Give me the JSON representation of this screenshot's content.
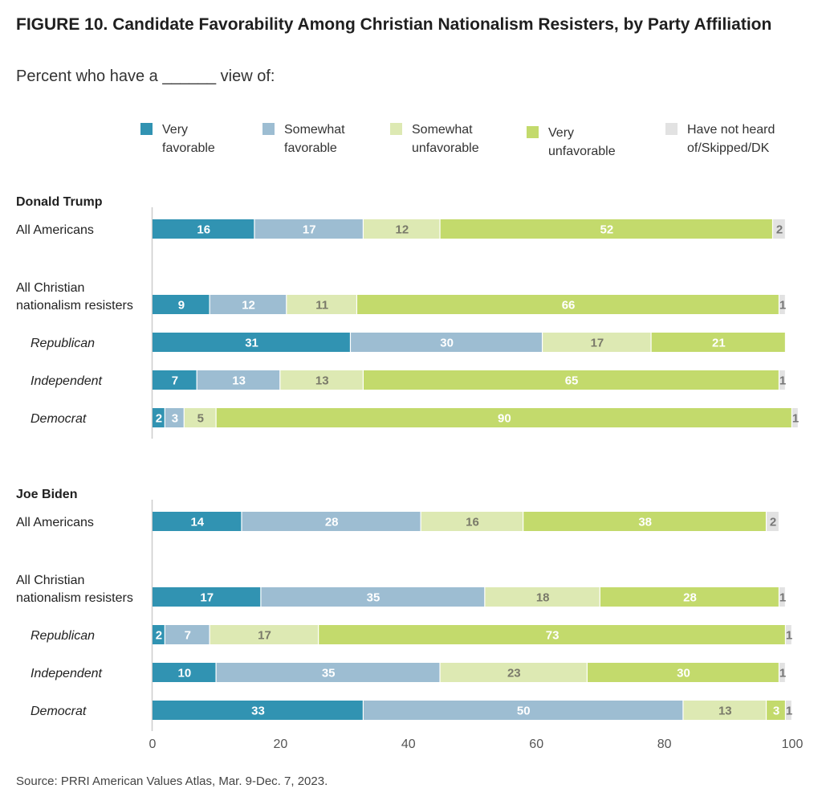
{
  "figure": {
    "title": "FIGURE 10.  Candidate Favorability Among Christian Nationalism Resisters, by Party Affiliation",
    "subtitle": "Percent who have a ______ view of:",
    "source": "Source: PRRI American Values Atlas, Mar. 9-Dec. 7, 2023."
  },
  "legend": [
    {
      "label": "Very\nfavorable",
      "color": "#3193b2"
    },
    {
      "label": "Somewhat\nfavorable",
      "color": "#9dbdd2"
    },
    {
      "label": "Somewhat\nunfavorable",
      "color": "#dde9b3"
    },
    {
      "label": "Very\nunfavorable",
      "color": "#c3da6c"
    },
    {
      "label": "Have not heard\nof/Skipped/DK",
      "color": "#e2e2e2"
    }
  ],
  "chart_data": {
    "type": "bar",
    "orientation": "horizontal",
    "stacked": true,
    "xlim": [
      0,
      100
    ],
    "xticks": [
      0,
      20,
      40,
      60,
      80,
      100
    ],
    "series_names": [
      "Very favorable",
      "Somewhat favorable",
      "Somewhat unfavorable",
      "Very unfavorable",
      "Have not heard of/Skipped/DK"
    ],
    "colors": [
      "#3193b2",
      "#9dbdd2",
      "#dde9b3",
      "#c3da6c",
      "#e2e2e2"
    ],
    "label_colors": [
      "#ffffff",
      "#ffffff",
      "#7a7a6a",
      "#ffffff",
      "#777777"
    ],
    "groups": [
      {
        "name": "Donald Trump",
        "rows": [
          {
            "label": "All Americans",
            "italic": false,
            "values": [
              16,
              17,
              12,
              52,
              2
            ]
          },
          {
            "label": "All Christian\nnationalism resisters",
            "italic": false,
            "values": [
              9,
              12,
              11,
              66,
              1
            ]
          },
          {
            "label": "Republican",
            "italic": true,
            "values": [
              31,
              30,
              17,
              21,
              null
            ]
          },
          {
            "label": "Independent",
            "italic": true,
            "values": [
              7,
              13,
              13,
              65,
              1
            ]
          },
          {
            "label": "Democrat",
            "italic": true,
            "values": [
              2,
              3,
              5,
              90,
              1
            ]
          }
        ]
      },
      {
        "name": "Joe Biden",
        "rows": [
          {
            "label": "All Americans",
            "italic": false,
            "values": [
              14,
              28,
              16,
              38,
              2
            ]
          },
          {
            "label": "All Christian\nnationalism resisters",
            "italic": false,
            "values": [
              17,
              35,
              18,
              28,
              1
            ]
          },
          {
            "label": "Republican",
            "italic": true,
            "values": [
              2,
              7,
              17,
              73,
              1
            ]
          },
          {
            "label": "Independent",
            "italic": true,
            "values": [
              10,
              35,
              23,
              30,
              1
            ]
          },
          {
            "label": "Democrat",
            "italic": true,
            "values": [
              33,
              50,
              13,
              3,
              1
            ]
          }
        ]
      }
    ]
  }
}
